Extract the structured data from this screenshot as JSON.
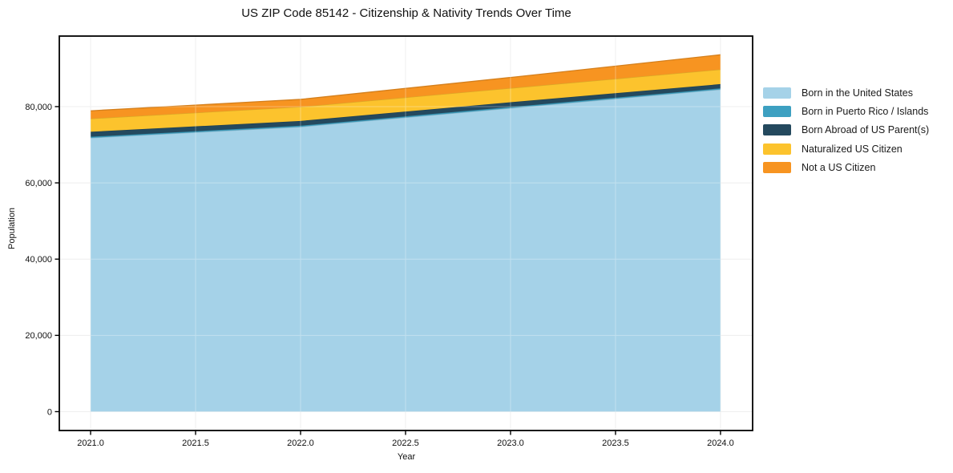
{
  "chart_data": {
    "type": "area",
    "stacked": true,
    "title": "US ZIP Code 85142 - Citizenship & Nativity Trends Over Time",
    "xlabel": "Year",
    "ylabel": "Population",
    "x": [
      2021,
      2022,
      2023,
      2024
    ],
    "series": [
      {
        "name": "Born in the United States",
        "color": "#a5d2e8",
        "values": [
          71800,
          74700,
          79600,
          84500
        ]
      },
      {
        "name": "Born in Puerto Rico / Islands",
        "color": "#3da0c1",
        "values": [
          300,
          300,
          300,
          300
        ]
      },
      {
        "name": "Born Abroad of US Parent(s)",
        "color": "#24495e",
        "values": [
          1300,
          1250,
          1250,
          1100
        ]
      },
      {
        "name": "Naturalized US Citizen",
        "color": "#fcc32d",
        "values": [
          3450,
          3700,
          3700,
          3850
        ]
      },
      {
        "name": "Not a US Citizen",
        "color": "#f79421",
        "values": [
          2050,
          1950,
          2800,
          3850
        ]
      }
    ],
    "totals": [
      78900,
      81900,
      87650,
      93600
    ],
    "x_ticks": {
      "values": [
        2021,
        2021.5,
        2022,
        2022.5,
        2023,
        2023.5,
        2024
      ],
      "labels": [
        "2021.0",
        "2021.5",
        "2022.0",
        "2022.5",
        "2023.0",
        "2023.5",
        "2024.0"
      ]
    },
    "y_ticks": {
      "values": [
        0,
        20000,
        40000,
        60000,
        80000
      ],
      "labels": [
        "0",
        "20,000",
        "40,000",
        "60,000",
        "80,000"
      ]
    },
    "xlim": [
      2020.851,
      2024.153
    ],
    "ylim": [
      -4950,
      98500
    ],
    "grid": true,
    "legend_position": "right-outside"
  },
  "colors": {
    "background": "#ffffff",
    "grid": "#e8e8e8",
    "spine": "#000000",
    "tick_text": "#111111"
  }
}
